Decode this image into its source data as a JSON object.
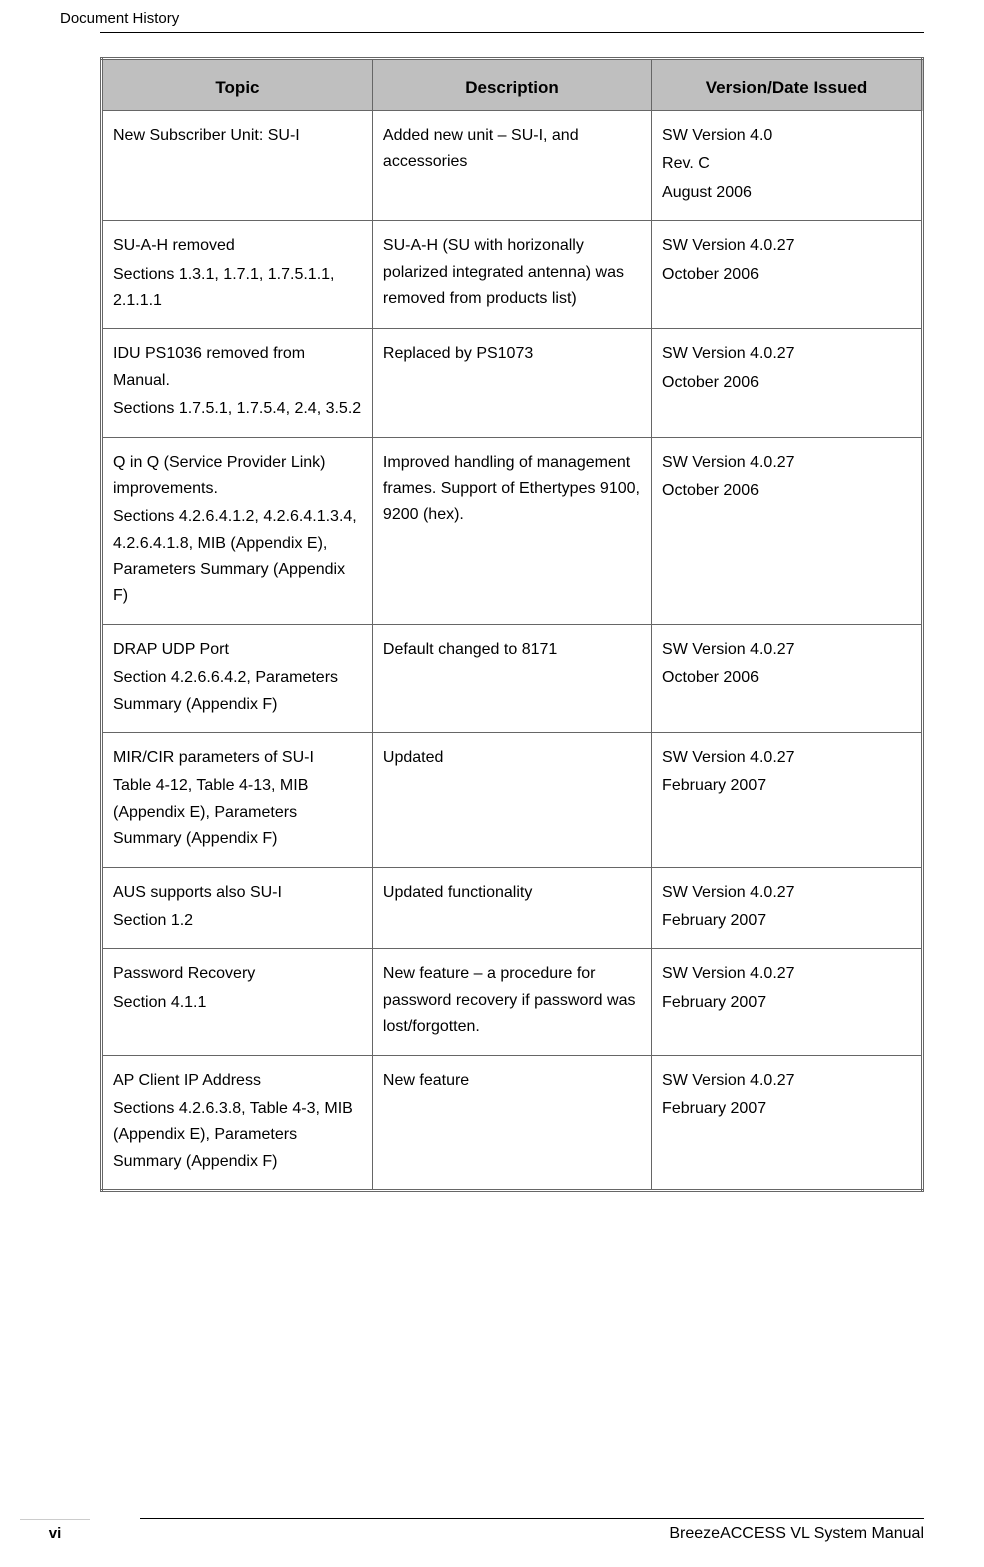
{
  "header": {
    "title": "Document History"
  },
  "table": {
    "columns": [
      "Topic",
      "Description",
      "Version/Date Issued"
    ],
    "rows": [
      {
        "topic": [
          "New Subscriber Unit: SU-I"
        ],
        "description": [
          "Added new unit – SU-I, and accessories"
        ],
        "version": [
          "SW Version 4.0",
          "Rev. C",
          "August 2006"
        ]
      },
      {
        "topic": [
          "SU-A-H removed",
          "Sections 1.3.1, 1.7.1, 1.7.5.1.1, 2.1.1.1"
        ],
        "description": [
          "SU-A-H (SU with horizonally polarized integrated antenna) was removed from products list)"
        ],
        "version": [
          "SW Version 4.0.27",
          "October 2006"
        ]
      },
      {
        "topic": [
          "IDU PS1036 removed from Manual.",
          "Sections 1.7.5.1, 1.7.5.4, 2.4, 3.5.2"
        ],
        "description": [
          "Replaced by PS1073"
        ],
        "version": [
          "SW Version 4.0.27",
          "October 2006"
        ]
      },
      {
        "topic": [
          "Q in Q (Service Provider Link) improvements.",
          "Sections 4.2.6.4.1.2, 4.2.6.4.1.3.4, 4.2.6.4.1.8, MIB (Appendix E), Parameters Summary (Appendix F)"
        ],
        "description": [
          "Improved handling of management frames. Support of Ethertypes 9100, 9200 (hex)."
        ],
        "version": [
          "SW Version 4.0.27",
          "October 2006"
        ]
      },
      {
        "topic": [
          "DRAP UDP Port",
          "Section 4.2.6.6.4.2, Parameters Summary (Appendix F)"
        ],
        "description": [
          "Default changed to 8171"
        ],
        "version": [
          "SW Version 4.0.27",
          "October 2006"
        ]
      },
      {
        "topic": [
          "MIR/CIR parameters of SU-I",
          "Table 4-12, Table 4-13, MIB (Appendix E), Parameters Summary (Appendix F)"
        ],
        "description": [
          "Updated"
        ],
        "version": [
          "SW Version 4.0.27",
          "February 2007"
        ]
      },
      {
        "topic": [
          "AUS supports also SU-I",
          "Section 1.2"
        ],
        "description": [
          "Updated functionality"
        ],
        "version": [
          "SW Version 4.0.27",
          "February 2007"
        ]
      },
      {
        "topic": [
          "Password Recovery",
          "Section 4.1.1"
        ],
        "description": [
          "New feature – a procedure for password recovery if password was lost/forgotten."
        ],
        "version": [
          "SW Version 4.0.27",
          "February 2007"
        ]
      },
      {
        "topic": [
          "AP Client IP Address",
          "Sections 4.2.6.3.8, Table 4-3, MIB (Appendix E), Parameters Summary (Appendix F)"
        ],
        "description": [
          "New feature"
        ],
        "version": [
          "SW Version 4.0.27",
          "February 2007"
        ]
      }
    ]
  },
  "footer": {
    "manual_title": "BreezeACCESS VL System Manual",
    "page_number": "vi"
  },
  "styling": {
    "header_bg": "#bfbfbf",
    "border_color": "#666666",
    "text_color": "#000000",
    "body_font_size": 16,
    "header_font_size": 17,
    "line_height": 1.65
  }
}
